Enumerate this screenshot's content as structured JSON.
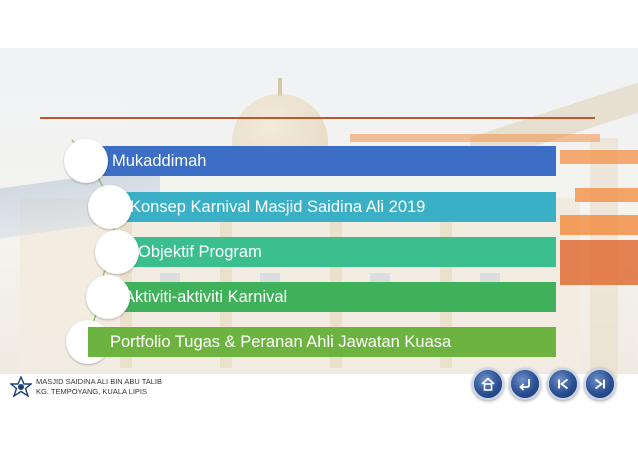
{
  "agenda": {
    "items": [
      {
        "label": "Mukaddimah",
        "color": "#3b6ec4"
      },
      {
        "label": "Konsep Karnival Masjid Saidina Ali 2019",
        "color": "#3ab0c6"
      },
      {
        "label": "Objektif Program",
        "color": "#3cbf8f"
      },
      {
        "label": "Aktiviti-aktiviti Karnival",
        "color": "#3fb15a"
      },
      {
        "label": "Portfolio Tugas & Peranan Ahli Jawatan Kuasa",
        "color": "#6db33f"
      }
    ],
    "title_line_color": "#c0572a"
  },
  "footer": {
    "org_line1": "MASJID SAIDINA ALI BIN ABU TALIB",
    "org_line2": "KG. TEMPOYANG, KUALA LIPIS"
  },
  "nav": {
    "buttons": [
      {
        "name": "home-button",
        "icon": "home-icon"
      },
      {
        "name": "return-button",
        "icon": "return-arrow-icon"
      },
      {
        "name": "first-slide-button",
        "icon": "skip-back-icon"
      },
      {
        "name": "last-slide-button",
        "icon": "skip-forward-icon"
      }
    ]
  },
  "accent_orange": "#f28a3c"
}
